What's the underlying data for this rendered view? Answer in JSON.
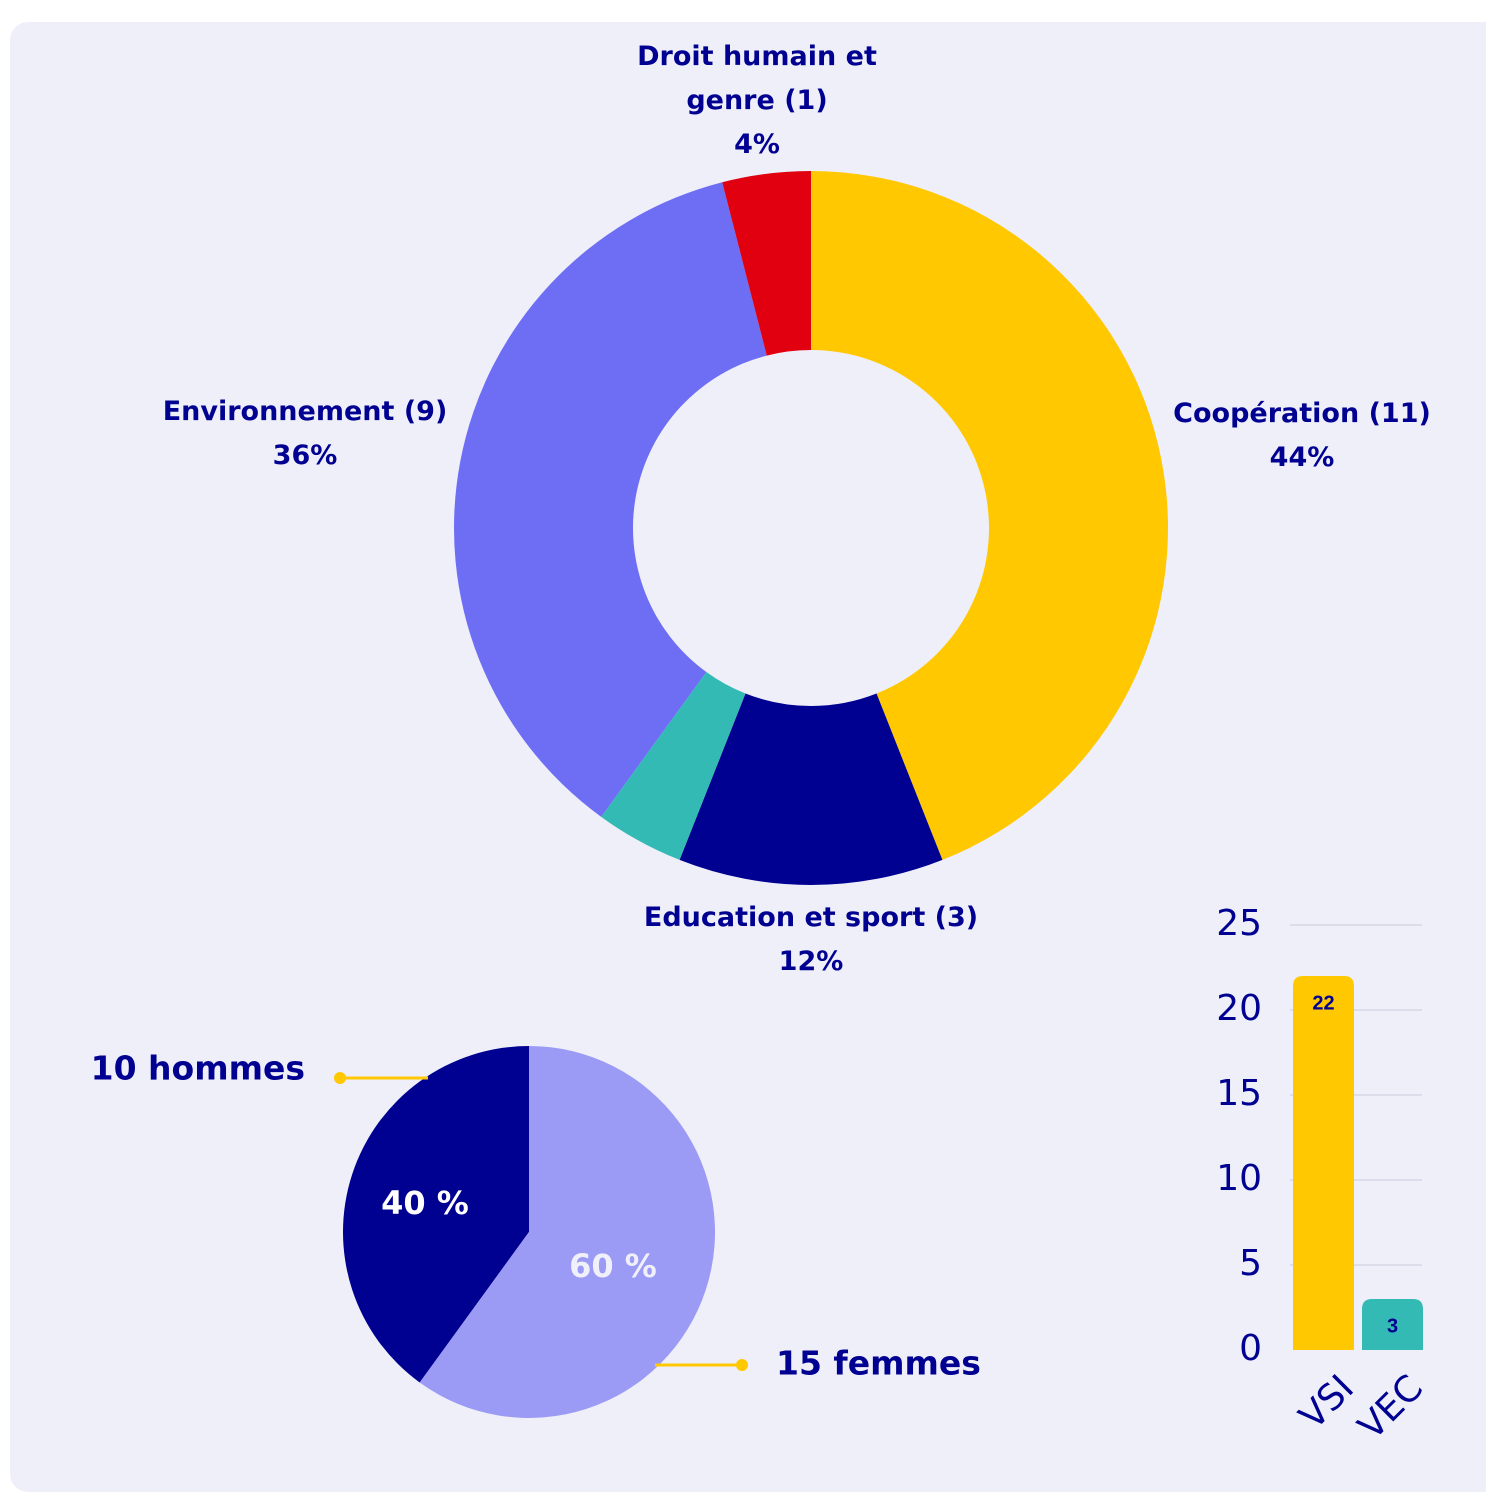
{
  "chart_data": [
    {
      "type": "donut",
      "categories": [
        "Coopération (11)",
        "Education et sport (3)",
        null,
        "Environnement (9)",
        "Droit humain et genre (1)"
      ],
      "values": [
        44,
        12,
        4,
        36,
        4
      ],
      "value_labels": [
        "44%",
        "12%",
        null,
        "36%",
        "4%"
      ],
      "colors": [
        "#FFC800",
        "#000091",
        "#34BAB5",
        "#6E6EF5",
        "#E1000F"
      ]
    },
    {
      "type": "pie",
      "categories": [
        "10 hommes",
        "15 femmes"
      ],
      "values": [
        40,
        60
      ],
      "value_labels": [
        "40 %",
        "60 %"
      ],
      "colors": [
        "#000091",
        "#9B9BF5"
      ]
    },
    {
      "type": "bar",
      "categories": [
        "VSI",
        "VEC"
      ],
      "values": [
        22,
        3
      ],
      "colors": [
        "#FFC800",
        "#34BAB5"
      ],
      "ylim": [
        0,
        25
      ],
      "yticks": [
        0,
        5,
        10,
        15,
        20,
        25
      ],
      "grid": true
    }
  ]
}
